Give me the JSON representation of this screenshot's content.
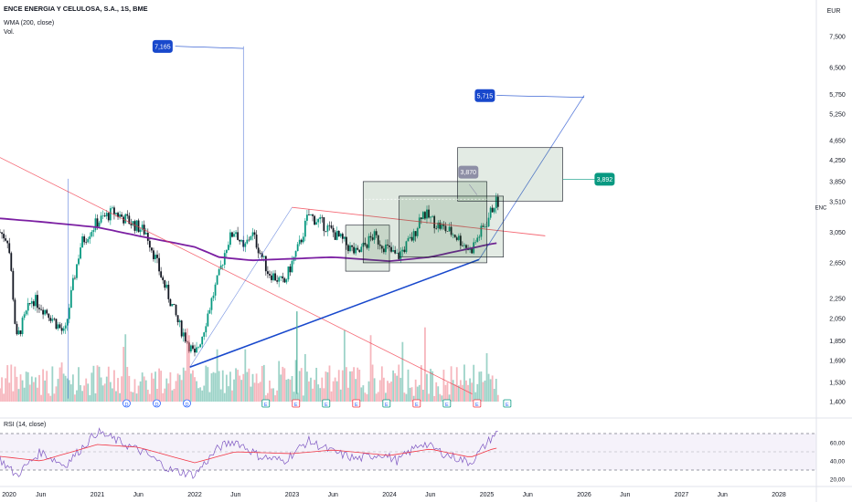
{
  "header": {
    "symbol_title": "ENCE ENERGIA Y CELULOSA, S.A., 1S, BME",
    "wma_label": "WMA (200, close)",
    "volume_label": "Vol.",
    "rsi_label": "RSI (14, close)"
  },
  "chart_data": {
    "type": "candlestick",
    "title": "ENCE ENERGIA Y CELULOSA, S.A., 1S, BME",
    "price_axis": {
      "currency": "EUR",
      "scale": "log",
      "ticks": [
        "7,500",
        "6,500",
        "5,750",
        "5,250",
        "4,650",
        "4,250",
        "3,850",
        "3,510",
        "3,050",
        "2,650",
        "2,250",
        "2,050",
        "1,850",
        "1,690",
        "1,530",
        "1,400"
      ],
      "ticker_label": "ENC"
    },
    "time_axis": {
      "ticks": [
        "2020",
        "Jun",
        "2021",
        "Jun",
        "2022",
        "Jun",
        "2023",
        "Jun",
        "2024",
        "Jun",
        "2025",
        "Jun",
        "2026",
        "Jun",
        "2027",
        "Jun",
        "2028"
      ]
    },
    "rsi_axis": {
      "ticks": [
        "60,00",
        "40,00",
        "20,00"
      ],
      "upper_band": 70,
      "lower_band": 30,
      "mid_line": 50
    },
    "price_path": [
      [
        "2020-01",
        3.05
      ],
      [
        "2020-02",
        2.95
      ],
      [
        "2020-03",
        1.85
      ],
      [
        "2020-05",
        2.25
      ],
      [
        "2020-07",
        2.1
      ],
      [
        "2020-09",
        1.9
      ],
      [
        "2020-11",
        2.9
      ],
      [
        "2021-01",
        3.2
      ],
      [
        "2021-03",
        3.35
      ],
      [
        "2021-05",
        3.2
      ],
      [
        "2021-07",
        3.05
      ],
      [
        "2021-09",
        2.45
      ],
      [
        "2021-11",
        2.0
      ],
      [
        "2022-01",
        1.72
      ],
      [
        "2022-02",
        1.92
      ],
      [
        "2022-04",
        2.5
      ],
      [
        "2022-05",
        2.9
      ],
      [
        "2022-06",
        3.1
      ],
      [
        "2022-07",
        2.8
      ],
      [
        "2022-08",
        3.05
      ],
      [
        "2022-10",
        2.55
      ],
      [
        "2022-12",
        2.4
      ],
      [
        "2023-02",
        2.9
      ],
      [
        "2023-03",
        3.3
      ],
      [
        "2023-05",
        3.15
      ],
      [
        "2023-07",
        2.95
      ],
      [
        "2023-09",
        2.75
      ],
      [
        "2023-11",
        3.0
      ],
      [
        "2024-01",
        2.8
      ],
      [
        "2024-02",
        2.72
      ],
      [
        "2024-04",
        3.0
      ],
      [
        "2024-05",
        3.35
      ],
      [
        "2024-07",
        3.15
      ],
      [
        "2024-09",
        3.02
      ],
      [
        "2024-11",
        2.8
      ],
      [
        "2025-01",
        3.2
      ],
      [
        "2025-02",
        3.5
      ]
    ],
    "wma_200": [
      [
        "2020-01",
        3.25
      ],
      [
        "2020-06",
        3.2
      ],
      [
        "2021-01",
        3.12
      ],
      [
        "2021-06",
        3.0
      ],
      [
        "2022-01",
        2.85
      ],
      [
        "2022-04",
        2.72
      ],
      [
        "2022-08",
        2.68
      ],
      [
        "2023-01",
        2.7
      ],
      [
        "2023-06",
        2.72
      ],
      [
        "2024-01",
        2.67
      ],
      [
        "2024-06",
        2.72
      ],
      [
        "2025-02",
        2.9
      ]
    ],
    "rsi_path": [
      [
        "2020-01",
        42
      ],
      [
        "2020-03",
        24
      ],
      [
        "2020-06",
        50
      ],
      [
        "2020-09",
        35
      ],
      [
        "2021-01",
        72
      ],
      [
        "2021-04",
        60
      ],
      [
        "2021-07",
        48
      ],
      [
        "2021-10",
        30
      ],
      [
        "2022-01",
        25
      ],
      [
        "2022-04",
        55
      ],
      [
        "2022-06",
        62
      ],
      [
        "2022-09",
        45
      ],
      [
        "2022-12",
        40
      ],
      [
        "2023-03",
        62
      ],
      [
        "2023-06",
        50
      ],
      [
        "2023-09",
        42
      ],
      [
        "2023-12",
        48
      ],
      [
        "2024-02",
        40
      ],
      [
        "2024-05",
        60
      ],
      [
        "2024-08",
        47
      ],
      [
        "2024-11",
        38
      ],
      [
        "2025-02",
        70
      ]
    ],
    "rsi_ma": [
      [
        "2020-01",
        45
      ],
      [
        "2020-06",
        40
      ],
      [
        "2021-01",
        58
      ],
      [
        "2021-06",
        55
      ],
      [
        "2022-01",
        38
      ],
      [
        "2022-06",
        50
      ],
      [
        "2023-01",
        48
      ],
      [
        "2023-06",
        52
      ],
      [
        "2024-01",
        46
      ],
      [
        "2024-06",
        53
      ],
      [
        "2024-11",
        44
      ],
      [
        "2025-02",
        54
      ]
    ],
    "annotations": [
      {
        "id": "target-1",
        "label": "7,165",
        "color": "#1848cc"
      },
      {
        "id": "target-2",
        "label": "5,715",
        "color": "#1848cc"
      },
      {
        "id": "box-high",
        "label": "3,870",
        "color": "#8e8fa6"
      },
      {
        "id": "level",
        "label": "3,892",
        "color": "#089981"
      }
    ],
    "event_markers": [
      "D",
      "D",
      "D",
      "E",
      "E",
      "E",
      "E",
      "E",
      "E",
      "E",
      "E",
      "E"
    ],
    "colors": {
      "up": "#089981",
      "down": "#131722",
      "wma": "#7b1fa2",
      "rsi": "#7e57c2",
      "rsi_ma": "#f23645",
      "trend_blue": "#1848cc",
      "trend_red": "#f23645"
    }
  }
}
